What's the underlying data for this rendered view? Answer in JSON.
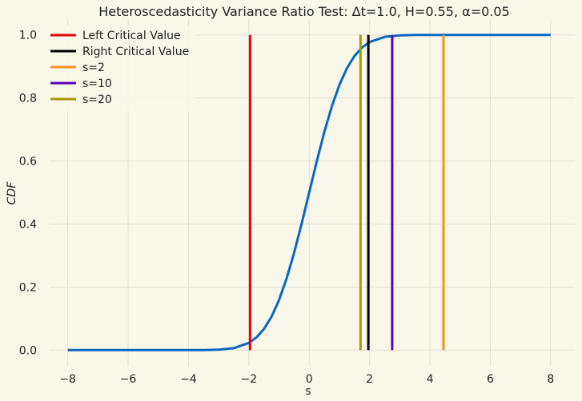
{
  "chart_data": {
    "type": "line",
    "title": "Heteroscedasticity Variance Ratio Test: Δt=1.0, H=0.55, α=0.05",
    "xlabel": "s",
    "ylabel": "CDF",
    "xlim": [
      -8.6,
      8.8
    ],
    "ylim": [
      -0.05,
      1.05
    ],
    "xticks": [
      -8,
      -6,
      -4,
      -2,
      0,
      2,
      4,
      6,
      8
    ],
    "xtick_labels": [
      "−8",
      "−6",
      "−4",
      "−2",
      "0",
      "2",
      "4",
      "6",
      "8"
    ],
    "yticks": [
      0.0,
      0.2,
      0.4,
      0.6,
      0.8,
      1.0
    ],
    "ytick_labels": [
      "0.0",
      "0.2",
      "0.4",
      "0.6",
      "0.8",
      "1.0"
    ],
    "grid": true,
    "legend_position": "top-left",
    "background_color": "#f9f6ea",
    "grid_color": "#e4e1d3",
    "cdf_curve": {
      "color": "#0868c4",
      "x": [
        -8,
        -7,
        -6,
        -5,
        -4,
        -3.5,
        -3,
        -2.5,
        -2,
        -1.75,
        -1.5,
        -1.25,
        -1,
        -0.75,
        -0.5,
        -0.25,
        0,
        0.25,
        0.5,
        0.75,
        1,
        1.25,
        1.5,
        1.75,
        2,
        2.5,
        3,
        3.5,
        4,
        5,
        6,
        7,
        8
      ],
      "y": [
        0.0,
        0.0,
        0.0,
        0.0,
        0.0,
        0.0002,
        0.0013,
        0.0062,
        0.0228,
        0.0401,
        0.0668,
        0.1056,
        0.1587,
        0.2266,
        0.3085,
        0.4013,
        0.5,
        0.5987,
        0.6915,
        0.7734,
        0.8413,
        0.8944,
        0.9332,
        0.9599,
        0.9772,
        0.9938,
        0.9987,
        0.9998,
        1.0,
        1.0,
        1.0,
        1.0,
        1.0
      ]
    },
    "vertical_lines": [
      {
        "name": "Left Critical Value",
        "x": -1.96,
        "color": "#e8000b"
      },
      {
        "name": "Right Critical Value",
        "x": 1.96,
        "color": "#000000"
      },
      {
        "name": "s=2",
        "x": 4.45,
        "color": "#f5931f"
      },
      {
        "name": "s=10",
        "x": 2.75,
        "color": "#5a03b8"
      },
      {
        "name": "s=20",
        "x": 1.7,
        "color": "#a59b00"
      }
    ]
  }
}
